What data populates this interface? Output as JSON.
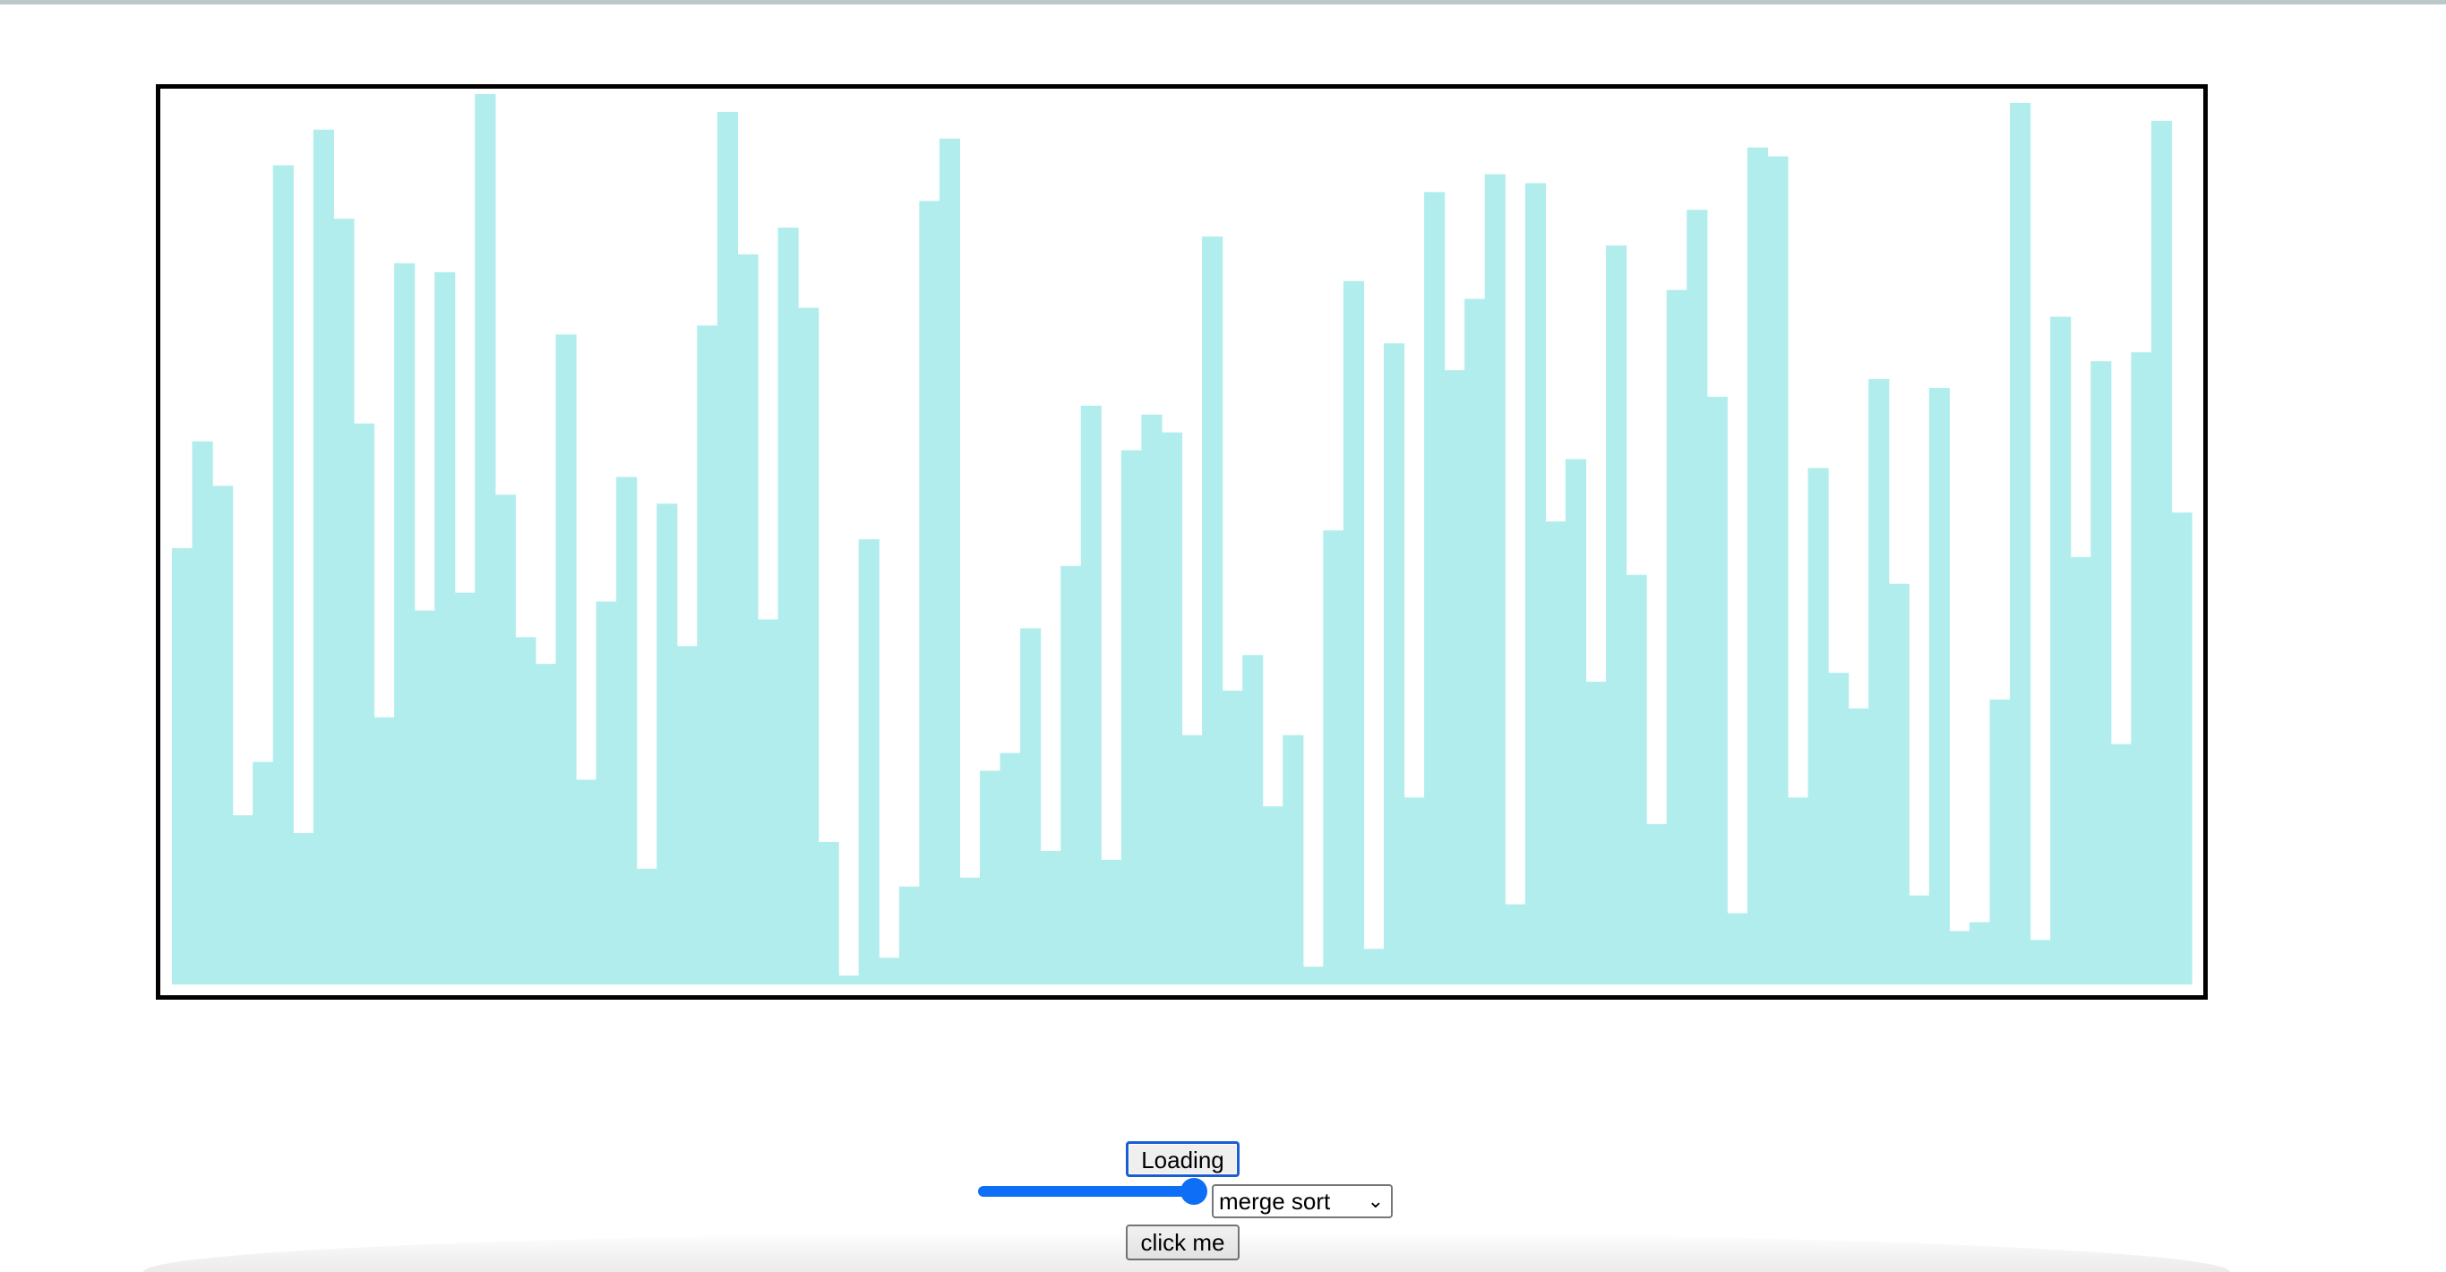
{
  "controls": {
    "loading_button_label": "Loading",
    "sort_select_value": "merge sort",
    "sort_select_options": [
      "merge sort"
    ],
    "click_button_label": "click me",
    "speed_slider_value": 1.0
  },
  "colors": {
    "bar": "#b2eded",
    "frame": "#000000",
    "slider_accent": "#0e6ef5"
  },
  "chart_data": {
    "type": "bar",
    "title": "",
    "xlabel": "",
    "ylabel": "",
    "ylim": [
      0,
      1000
    ],
    "values": [
      490,
      610,
      560,
      190,
      250,
      920,
      170,
      960,
      860,
      630,
      300,
      810,
      420,
      800,
      440,
      1000,
      550,
      390,
      360,
      730,
      230,
      430,
      570,
      130,
      540,
      380,
      740,
      980,
      820,
      410,
      850,
      760,
      160,
      10,
      500,
      30,
      110,
      880,
      950,
      120,
      240,
      260,
      400,
      150,
      470,
      650,
      140,
      600,
      640,
      620,
      280,
      840,
      330,
      370,
      200,
      280,
      20,
      510,
      790,
      40,
      720,
      210,
      890,
      690,
      770,
      910,
      90,
      900,
      520,
      590,
      340,
      830,
      460,
      180,
      780,
      870,
      660,
      80,
      940,
      930,
      210,
      580,
      350,
      310,
      680,
      450,
      100,
      670,
      60,
      70,
      320,
      990,
      50,
      750,
      480,
      700,
      270,
      710,
      970,
      530
    ]
  }
}
